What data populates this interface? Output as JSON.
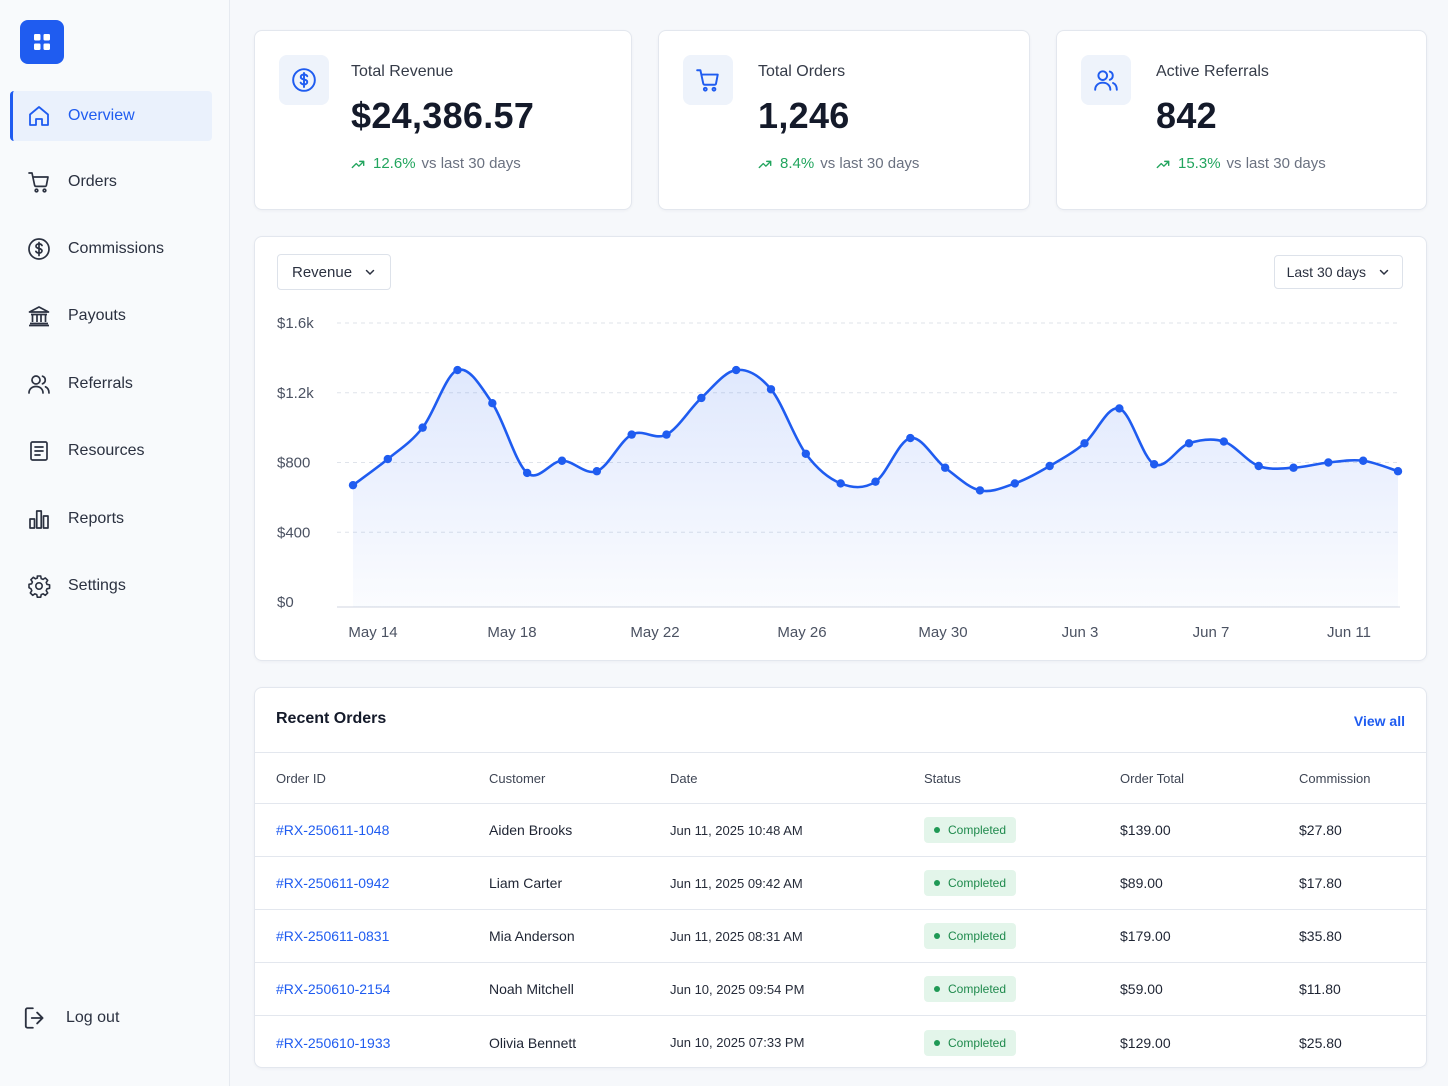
{
  "sidebar": {
    "logo_icon": "grid-icon",
    "items": [
      {
        "label": "Overview",
        "icon": "home-icon",
        "active": true
      },
      {
        "label": "Orders",
        "icon": "cart-icon"
      },
      {
        "label": "Commissions",
        "icon": "dollar-circle-icon"
      },
      {
        "label": "Payouts",
        "icon": "bank-icon"
      },
      {
        "label": "Referrals",
        "icon": "users-icon"
      },
      {
        "label": "Resources",
        "icon": "document-icon"
      },
      {
        "label": "Reports",
        "icon": "bar-chart-icon"
      },
      {
        "label": "Settings",
        "icon": "gear-icon"
      }
    ],
    "logout_label": "Log out"
  },
  "stats": [
    {
      "label": "Total Revenue",
      "value": "$24,386.57",
      "trend": "12.6%",
      "trend_text": "vs last 30 days",
      "icon": "dollar-circle-icon"
    },
    {
      "label": "Total Orders",
      "value": "1,246",
      "trend": "8.4%",
      "trend_text": "vs last 30 days",
      "icon": "cart-icon"
    },
    {
      "label": "Active Referrals",
      "value": "842",
      "trend": "15.3%",
      "trend_text": "vs last 30 days",
      "icon": "users-icon"
    }
  ],
  "chart": {
    "metric_select": "Revenue",
    "range_select": "Last 30 days"
  },
  "chart_data": {
    "type": "area",
    "title": "",
    "xlabel": "",
    "ylabel": "",
    "ylim": [
      0,
      1600
    ],
    "yticks": [
      "$0",
      "$400",
      "$800",
      "$1.2k",
      "$1.6k"
    ],
    "xticks": [
      "May 14",
      "May 18",
      "May 22",
      "May 26",
      "May 30",
      "Jun 3",
      "Jun 7",
      "Jun 11"
    ],
    "grid": true,
    "color": "#1f5cf0",
    "x": [
      "May 13",
      "May 14",
      "May 15",
      "May 16",
      "May 17",
      "May 18",
      "May 19",
      "May 20",
      "May 21",
      "May 22",
      "May 23",
      "May 24",
      "May 25",
      "May 26",
      "May 27",
      "May 28",
      "May 29",
      "May 30",
      "May 31",
      "Jun 1",
      "Jun 2",
      "Jun 3",
      "Jun 4",
      "Jun 5",
      "Jun 6",
      "Jun 7",
      "Jun 8",
      "Jun 9",
      "Jun 10",
      "Jun 11",
      "Jun 12"
    ],
    "values": [
      670,
      820,
      1000,
      1330,
      1140,
      740,
      810,
      750,
      960,
      960,
      1170,
      1330,
      1220,
      850,
      680,
      690,
      940,
      770,
      640,
      680,
      780,
      910,
      1110,
      790,
      910,
      920,
      780,
      770,
      800,
      810,
      750
    ],
    "marked": [
      0,
      1,
      2,
      3,
      4,
      5,
      6,
      7,
      8,
      9,
      10,
      11,
      12,
      13,
      14,
      15,
      16,
      17,
      18,
      19,
      20,
      21,
      22,
      23,
      24,
      25,
      26
    ]
  },
  "orders": {
    "title": "Recent Orders",
    "view_all": "View all",
    "columns": [
      "Order ID",
      "Customer",
      "Date",
      "Status",
      "Order Total",
      "Commission"
    ],
    "rows": [
      [
        "#RX-250611-1048",
        "Aiden Brooks",
        "Jun 11, 2025 10:48 AM",
        "Completed",
        "$139.00",
        "$27.80"
      ],
      [
        "#RX-250611-0942",
        "Liam Carter",
        "Jun 11, 2025 09:42 AM",
        "Completed",
        "$89.00",
        "$17.80"
      ],
      [
        "#RX-250611-0831",
        "Mia Anderson",
        "Jun 11, 2025 08:31 AM",
        "Completed",
        "$179.00",
        "$35.80"
      ],
      [
        "#RX-250610-2154",
        "Noah Mitchell",
        "Jun 10, 2025 09:54 PM",
        "Completed",
        "$59.00",
        "$11.80"
      ],
      [
        "#RX-250610-1933",
        "Olivia Bennett",
        "Jun 10, 2025 07:33 PM",
        "Completed",
        "$129.00",
        "$25.80"
      ]
    ]
  }
}
